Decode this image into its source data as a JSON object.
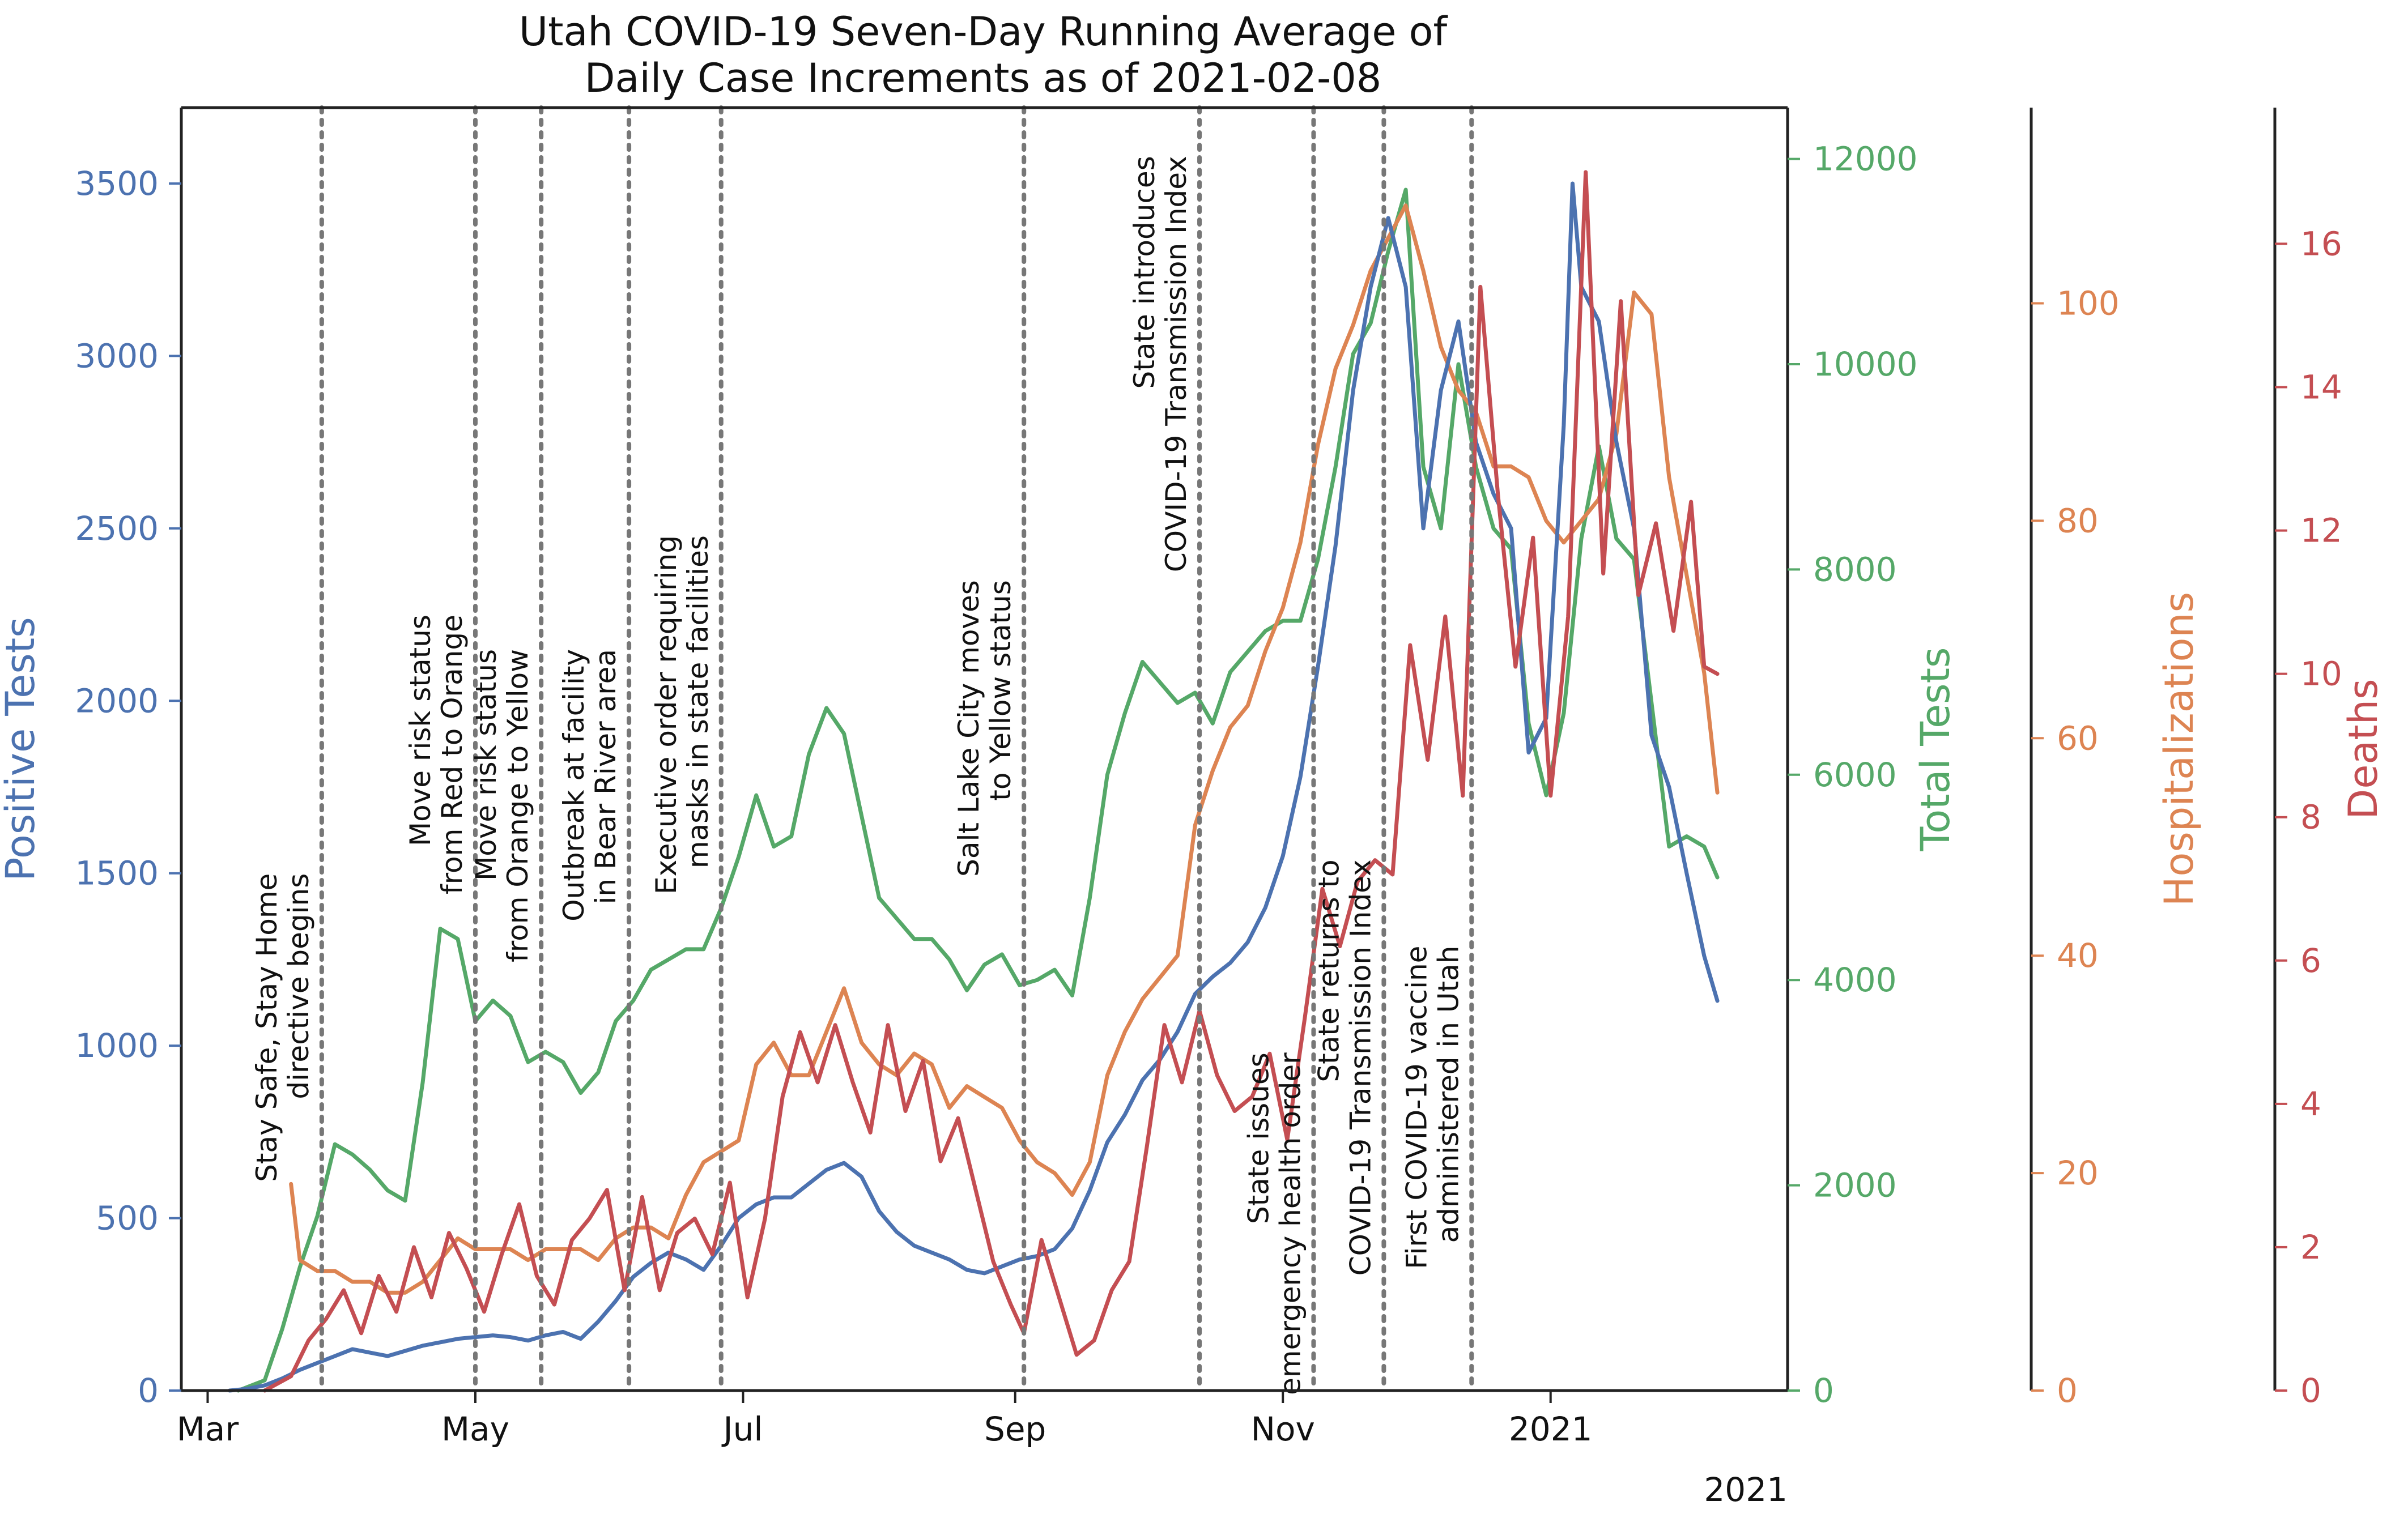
{
  "chart_data": {
    "type": "line",
    "title_line1": "Utah COVID-19 Seven-Day Running Average of",
    "title_line2": "Daily Case Increments as of 2021-02-08",
    "x_tick_labels": [
      "Mar",
      "May",
      "Jul",
      "Sep",
      "Nov",
      "2021"
    ],
    "x_offset_label": "2021",
    "xlim": [
      "2020-02-24",
      "2021-02-24"
    ],
    "grid": false,
    "legend": "none",
    "axes": {
      "positive_tests": {
        "label": "Positive Tests",
        "color": "#4c72b0",
        "ylim": [
          0,
          3720
        ],
        "ticks": [
          0,
          500,
          1000,
          1500,
          2000,
          2500,
          3000,
          3500
        ]
      },
      "total_tests": {
        "label": "Total Tests",
        "color": "#55a868",
        "ylim": [
          0,
          12500
        ],
        "ticks": [
          0,
          2000,
          4000,
          6000,
          8000,
          10000,
          12000
        ]
      },
      "hospitalizations": {
        "label": "Hospitalizations",
        "color": "#dd8452",
        "ylim": [
          0,
          118
        ],
        "ticks": [
          0,
          20,
          40,
          60,
          80,
          100
        ]
      },
      "deaths": {
        "label": "Deaths",
        "color": "#c44e52",
        "ylim": [
          0,
          17.9
        ],
        "ticks": [
          0,
          2,
          4,
          6,
          8,
          10,
          12,
          14,
          16
        ]
      }
    },
    "events": [
      {
        "date": "2020-03-27",
        "lines": [
          "Stay Safe, Stay Home",
          "directive begins"
        ],
        "label_top_value": 1500
      },
      {
        "date": "2020-05-01",
        "lines": [
          "Move risk status",
          "from Red to Orange"
        ],
        "label_top_value": 2250
      },
      {
        "date": "2020-05-16",
        "lines": [
          "Move risk status",
          "from Orange to Yellow"
        ],
        "label_top_value": 2150
      },
      {
        "date": "2020-06-05",
        "lines": [
          "Outbreak at facility",
          "in Bear River area"
        ],
        "label_top_value": 2150
      },
      {
        "date": "2020-06-26",
        "lines": [
          "Executive order requiring",
          "masks in state facilities"
        ],
        "label_top_value": 2480
      },
      {
        "date": "2020-09-03",
        "lines": [
          "Salt Lake City moves",
          "to Yellow status"
        ],
        "label_top_value": 2350
      },
      {
        "date": "2020-10-13",
        "lines": [
          "State introduces",
          "COVID-19 Transmission Index"
        ],
        "label_top_value": 3580
      },
      {
        "date": "2020-11-08",
        "lines": [
          "State issues",
          "emergency health order"
        ],
        "label_top_value": 980
      },
      {
        "date": "2020-11-24",
        "lines": [
          "State returns to",
          "COVID-19 Transmission Index"
        ],
        "label_top_value": 1540
      },
      {
        "date": "2020-12-14",
        "lines": [
          "First COVID-19 vaccine",
          "administered in Utah"
        ],
        "label_top_value": 1290
      }
    ],
    "series": [
      {
        "name": "Positive Tests",
        "axis": "positive_tests",
        "x": [
          "2020-03-06",
          "2020-03-10",
          "2020-03-14",
          "2020-03-18",
          "2020-03-22",
          "2020-03-26",
          "2020-03-30",
          "2020-04-03",
          "2020-04-07",
          "2020-04-11",
          "2020-04-15",
          "2020-04-19",
          "2020-04-23",
          "2020-04-27",
          "2020-05-01",
          "2020-05-05",
          "2020-05-09",
          "2020-05-13",
          "2020-05-17",
          "2020-05-21",
          "2020-05-25",
          "2020-05-29",
          "2020-06-02",
          "2020-06-06",
          "2020-06-10",
          "2020-06-14",
          "2020-06-18",
          "2020-06-22",
          "2020-06-26",
          "2020-06-30",
          "2020-07-04",
          "2020-07-08",
          "2020-07-12",
          "2020-07-16",
          "2020-07-20",
          "2020-07-24",
          "2020-07-28",
          "2020-08-01",
          "2020-08-05",
          "2020-08-09",
          "2020-08-13",
          "2020-08-17",
          "2020-08-21",
          "2020-08-25",
          "2020-08-29",
          "2020-09-02",
          "2020-09-06",
          "2020-09-10",
          "2020-09-14",
          "2020-09-18",
          "2020-09-22",
          "2020-09-26",
          "2020-09-30",
          "2020-10-04",
          "2020-10-08",
          "2020-10-12",
          "2020-10-16",
          "2020-10-20",
          "2020-10-24",
          "2020-10-28",
          "2020-11-01",
          "2020-11-05",
          "2020-11-09",
          "2020-11-13",
          "2020-11-17",
          "2020-11-21",
          "2020-11-25",
          "2020-11-29",
          "2020-12-03",
          "2020-12-07",
          "2020-12-11",
          "2020-12-15",
          "2020-12-19",
          "2020-12-23",
          "2020-12-27",
          "2020-12-31",
          "2021-01-04",
          "2021-01-06",
          "2021-01-08",
          "2021-01-12",
          "2021-01-16",
          "2021-01-20",
          "2021-01-24",
          "2021-01-28",
          "2021-02-01",
          "2021-02-05",
          "2021-02-08"
        ],
        "y": [
          0,
          5,
          15,
          35,
          60,
          80,
          100,
          120,
          110,
          100,
          115,
          130,
          140,
          150,
          155,
          160,
          155,
          145,
          160,
          170,
          150,
          200,
          260,
          330,
          370,
          400,
          380,
          350,
          420,
          500,
          540,
          560,
          560,
          600,
          640,
          660,
          620,
          520,
          460,
          420,
          400,
          380,
          350,
          340,
          360,
          380,
          390,
          410,
          470,
          580,
          720,
          800,
          900,
          960,
          1040,
          1150,
          1200,
          1240,
          1300,
          1400,
          1550,
          1780,
          2100,
          2450,
          2900,
          3200,
          3400,
          3200,
          2500,
          2900,
          3100,
          2750,
          2600,
          2500,
          1850,
          1950,
          2800,
          3500,
          3200,
          3100,
          2750,
          2500,
          1900,
          1750,
          1500,
          1260,
          1130
        ]
      },
      {
        "name": "Total Tests",
        "axis": "total_tests",
        "x": [
          "2020-03-08",
          "2020-03-14",
          "2020-03-18",
          "2020-03-22",
          "2020-03-26",
          "2020-03-30",
          "2020-04-03",
          "2020-04-07",
          "2020-04-11",
          "2020-04-15",
          "2020-04-19",
          "2020-04-23",
          "2020-04-27",
          "2020-05-01",
          "2020-05-05",
          "2020-05-09",
          "2020-05-13",
          "2020-05-17",
          "2020-05-21",
          "2020-05-25",
          "2020-05-29",
          "2020-06-02",
          "2020-06-06",
          "2020-06-10",
          "2020-06-14",
          "2020-06-18",
          "2020-06-22",
          "2020-06-26",
          "2020-06-30",
          "2020-07-04",
          "2020-07-08",
          "2020-07-12",
          "2020-07-16",
          "2020-07-20",
          "2020-07-24",
          "2020-07-28",
          "2020-08-01",
          "2020-08-05",
          "2020-08-09",
          "2020-08-13",
          "2020-08-17",
          "2020-08-21",
          "2020-08-25",
          "2020-08-29",
          "2020-09-02",
          "2020-09-06",
          "2020-09-10",
          "2020-09-14",
          "2020-09-18",
          "2020-09-22",
          "2020-09-26",
          "2020-09-30",
          "2020-10-04",
          "2020-10-08",
          "2020-10-12",
          "2020-10-16",
          "2020-10-20",
          "2020-10-24",
          "2020-10-28",
          "2020-11-01",
          "2020-11-05",
          "2020-11-09",
          "2020-11-13",
          "2020-11-17",
          "2020-11-21",
          "2020-11-25",
          "2020-11-29",
          "2020-12-03",
          "2020-12-07",
          "2020-12-11",
          "2020-12-15",
          "2020-12-19",
          "2020-12-23",
          "2020-12-27",
          "2020-12-31",
          "2021-01-04",
          "2021-01-08",
          "2021-01-12",
          "2021-01-16",
          "2021-01-20",
          "2021-01-24",
          "2021-01-28",
          "2021-02-01",
          "2021-02-05",
          "2021-02-08"
        ],
        "y": [
          0,
          100,
          600,
          1200,
          1700,
          2400,
          2300,
          2150,
          1950,
          1850,
          3000,
          4500,
          4400,
          3600,
          3800,
          3650,
          3200,
          3300,
          3200,
          2900,
          3100,
          3600,
          3800,
          4100,
          4200,
          4300,
          4300,
          4700,
          5200,
          5800,
          5300,
          5400,
          6200,
          6650,
          6400,
          5600,
          4800,
          4600,
          4400,
          4400,
          4200,
          3900,
          4150,
          4250,
          3950,
          4000,
          4100,
          3850,
          4800,
          6000,
          6600,
          7100,
          6900,
          6700,
          6800,
          6500,
          7000,
          7200,
          7400,
          7500,
          7500,
          8100,
          9000,
          10100,
          10400,
          11100,
          11700,
          9000,
          8400,
          10000,
          9000,
          8400,
          8200,
          6500,
          5800,
          6600,
          8300,
          9200,
          8300,
          8100,
          6700,
          5300,
          5400,
          5300,
          5000
        ]
      },
      {
        "name": "Hospitalizations",
        "axis": "hospitalizations",
        "x": [
          "2020-03-20",
          "2020-03-22",
          "2020-03-26",
          "2020-03-30",
          "2020-04-03",
          "2020-04-07",
          "2020-04-11",
          "2020-04-15",
          "2020-04-19",
          "2020-04-23",
          "2020-04-27",
          "2020-05-01",
          "2020-05-05",
          "2020-05-09",
          "2020-05-13",
          "2020-05-17",
          "2020-05-21",
          "2020-05-25",
          "2020-05-29",
          "2020-06-02",
          "2020-06-06",
          "2020-06-10",
          "2020-06-14",
          "2020-06-18",
          "2020-06-22",
          "2020-06-26",
          "2020-06-30",
          "2020-07-04",
          "2020-07-08",
          "2020-07-12",
          "2020-07-16",
          "2020-07-20",
          "2020-07-24",
          "2020-07-28",
          "2020-08-01",
          "2020-08-05",
          "2020-08-09",
          "2020-08-13",
          "2020-08-17",
          "2020-08-21",
          "2020-08-25",
          "2020-08-29",
          "2020-09-02",
          "2020-09-06",
          "2020-09-10",
          "2020-09-14",
          "2020-09-18",
          "2020-09-22",
          "2020-09-26",
          "2020-09-30",
          "2020-10-04",
          "2020-10-08",
          "2020-10-12",
          "2020-10-16",
          "2020-10-20",
          "2020-10-24",
          "2020-10-28",
          "2020-11-01",
          "2020-11-05",
          "2020-11-09",
          "2020-11-13",
          "2020-11-17",
          "2020-11-21",
          "2020-11-25",
          "2020-11-29",
          "2020-12-03",
          "2020-12-07",
          "2020-12-11",
          "2020-12-15",
          "2020-12-19",
          "2020-12-23",
          "2020-12-27",
          "2020-12-31",
          "2021-01-04",
          "2021-01-08",
          "2021-01-12",
          "2021-01-16",
          "2021-01-20",
          "2021-01-24",
          "2021-01-28",
          "2021-02-01",
          "2021-02-05",
          "2021-02-08"
        ],
        "y": [
          19,
          12,
          11,
          11,
          10,
          10,
          9,
          9,
          10,
          12,
          14,
          13,
          13,
          13,
          12,
          13,
          13,
          13,
          12,
          14,
          15,
          15,
          14,
          18,
          21,
          22,
          23,
          30,
          32,
          29,
          29,
          33,
          37,
          32,
          30,
          29,
          31,
          30,
          26,
          28,
          27,
          26,
          23,
          21,
          20,
          18,
          21,
          29,
          33,
          36,
          38,
          40,
          52,
          57,
          61,
          63,
          68,
          72,
          78,
          87,
          94,
          98,
          103,
          106,
          109,
          103,
          96,
          92,
          90,
          85,
          85,
          84,
          80,
          78,
          80,
          82,
          88,
          101,
          99,
          84,
          75,
          66,
          55
        ]
      },
      {
        "name": "Deaths",
        "axis": "deaths",
        "x": [
          "2020-03-14",
          "2020-03-20",
          "2020-03-24",
          "2020-03-28",
          "2020-04-01",
          "2020-04-05",
          "2020-04-09",
          "2020-04-13",
          "2020-04-17",
          "2020-04-21",
          "2020-04-25",
          "2020-04-29",
          "2020-05-03",
          "2020-05-07",
          "2020-05-11",
          "2020-05-15",
          "2020-05-19",
          "2020-05-23",
          "2020-05-27",
          "2020-05-31",
          "2020-06-04",
          "2020-06-08",
          "2020-06-12",
          "2020-06-16",
          "2020-06-20",
          "2020-06-24",
          "2020-06-28",
          "2020-07-02",
          "2020-07-06",
          "2020-07-10",
          "2020-07-14",
          "2020-07-18",
          "2020-07-22",
          "2020-07-26",
          "2020-07-30",
          "2020-08-03",
          "2020-08-07",
          "2020-08-11",
          "2020-08-15",
          "2020-08-19",
          "2020-08-23",
          "2020-08-27",
          "2020-08-31",
          "2020-09-03",
          "2020-09-07",
          "2020-09-11",
          "2020-09-15",
          "2020-09-19",
          "2020-09-23",
          "2020-09-27",
          "2020-10-01",
          "2020-10-05",
          "2020-10-09",
          "2020-10-13",
          "2020-10-17",
          "2020-10-21",
          "2020-10-25",
          "2020-10-29",
          "2020-11-02",
          "2020-11-06",
          "2020-11-10",
          "2020-11-14",
          "2020-11-18",
          "2020-11-22",
          "2020-11-26",
          "2020-11-30",
          "2020-12-04",
          "2020-12-08",
          "2020-12-12",
          "2020-12-16",
          "2020-12-20",
          "2020-12-24",
          "2020-12-28",
          "2021-01-01",
          "2021-01-05",
          "2021-01-09",
          "2021-01-13",
          "2021-01-17",
          "2021-01-21",
          "2021-01-25",
          "2021-01-29",
          "2021-02-02",
          "2021-02-05",
          "2021-02-08"
        ],
        "y": [
          0,
          0.2,
          0.7,
          1.0,
          1.4,
          0.8,
          1.6,
          1.1,
          2.0,
          1.3,
          2.2,
          1.7,
          1.1,
          1.9,
          2.6,
          1.6,
          1.2,
          2.1,
          2.4,
          2.8,
          1.4,
          2.7,
          1.4,
          2.2,
          2.4,
          1.9,
          2.9,
          1.3,
          2.4,
          4.1,
          5.0,
          4.3,
          5.1,
          4.3,
          3.6,
          5.1,
          3.9,
          4.6,
          3.2,
          3.8,
          2.8,
          1.8,
          1.2,
          0.8,
          2.1,
          1.3,
          0.5,
          0.7,
          1.4,
          1.8,
          3.4,
          5.1,
          4.3,
          5.3,
          4.4,
          3.9,
          4.1,
          4.7,
          3.5,
          5.2,
          7.0,
          6.2,
          7.1,
          7.4,
          7.2,
          10.4,
          8.8,
          10.8,
          8.3,
          15.4,
          12.5,
          10.1,
          11.9,
          8.3,
          10.8,
          17.0,
          11.4,
          15.2,
          11.1,
          12.1,
          10.6,
          12.4,
          10.1,
          10.0
        ]
      }
    ]
  }
}
